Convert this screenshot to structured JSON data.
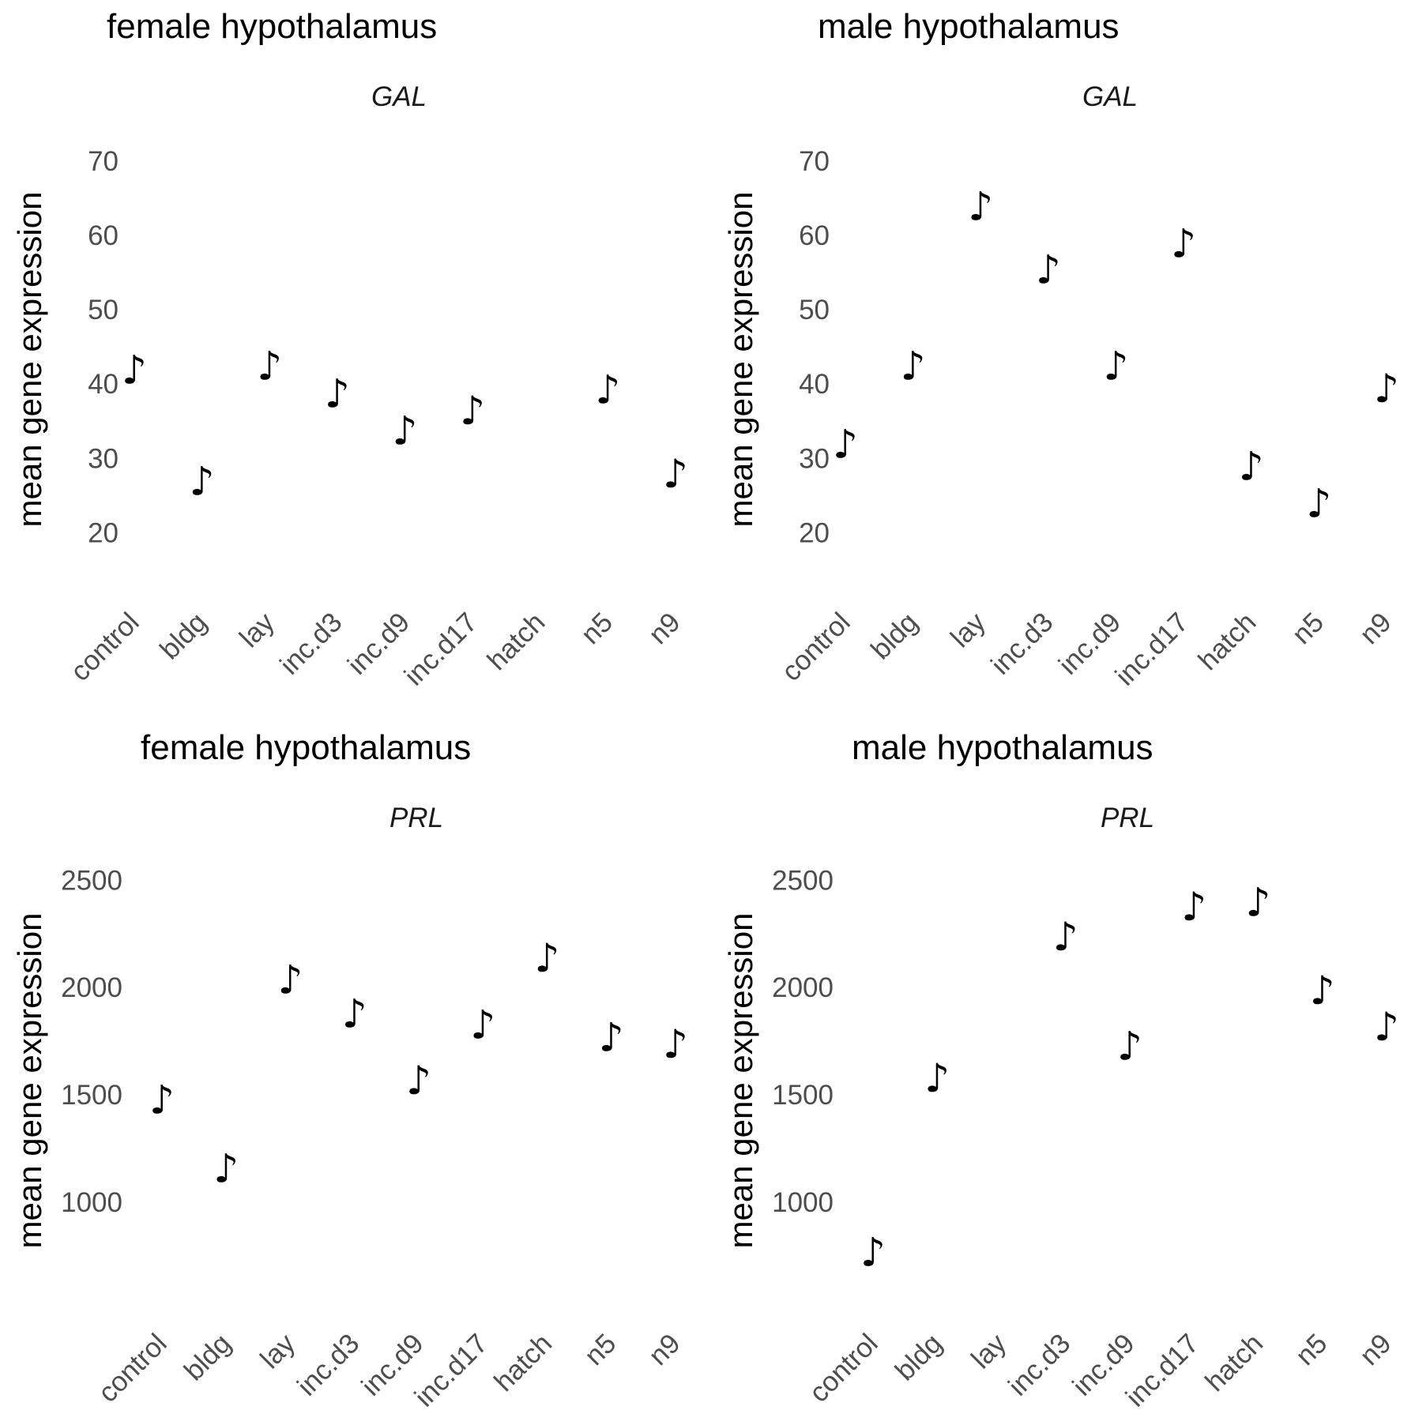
{
  "chart_data": [
    {
      "type": "scatter",
      "title": "female hypothalamus",
      "subtitle": "GAL",
      "ylabel": "mean gene expression",
      "categories": [
        "control",
        "bldg",
        "lay",
        "inc.d3",
        "inc.d9",
        "inc.d17",
        "hatch",
        "n5",
        "n9"
      ],
      "values": [
        42,
        27,
        42.5,
        38.8,
        33.8,
        36.5,
        null,
        39.3,
        28
      ],
      "yticks": [
        20,
        30,
        40,
        50,
        60,
        70
      ],
      "ylim": [
        16,
        72
      ],
      "marker": "♪"
    },
    {
      "type": "scatter",
      "title": "male hypothalamus",
      "subtitle": "GAL",
      "ylabel": "mean gene expression",
      "categories": [
        "control",
        "bldg",
        "lay",
        "inc.d3",
        "inc.d9",
        "inc.d17",
        "hatch",
        "n5",
        "n9"
      ],
      "values": [
        32,
        42.5,
        64,
        55.5,
        42.5,
        59,
        29,
        24,
        39.5
      ],
      "yticks": [
        20,
        30,
        40,
        50,
        60,
        70
      ],
      "ylim": [
        16,
        72
      ],
      "marker": "♪"
    },
    {
      "type": "scatter",
      "title": "female hypothalamus",
      "subtitle": "PRL",
      "ylabel": "mean gene expression",
      "categories": [
        "control",
        "bldg",
        "lay",
        "inc.d3",
        "inc.d9",
        "inc.d17",
        "hatch",
        "n5",
        "n9"
      ],
      "values": [
        1480,
        1160,
        2040,
        1880,
        1570,
        1830,
        2140,
        1770,
        1740
      ],
      "yticks": [
        1000,
        1500,
        2000,
        2500
      ],
      "ylim": [
        620,
        2560
      ],
      "marker": "♪"
    },
    {
      "type": "scatter",
      "title": "male hypothalamus",
      "subtitle": "PRL",
      "ylabel": "mean gene expression",
      "categories": [
        "control",
        "bldg",
        "lay",
        "inc.d3",
        "inc.d9",
        "inc.d17",
        "hatch",
        "n5",
        "n9"
      ],
      "values": [
        770,
        1580,
        null,
        2240,
        1730,
        2380,
        2400,
        1990,
        1820
      ],
      "yticks": [
        1000,
        1500,
        2000,
        2500
      ],
      "ylim": [
        620,
        2560
      ],
      "marker": "♪"
    }
  ]
}
